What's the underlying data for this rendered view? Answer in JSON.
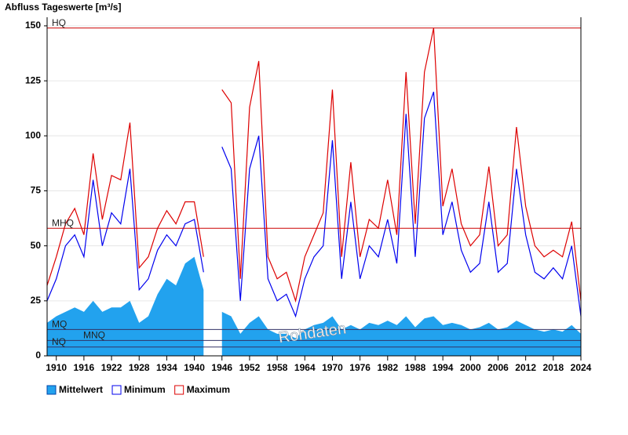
{
  "chart_data": {
    "type": "line",
    "title": "Abfluss Tageswerte [m³/s]",
    "x": [
      1908,
      1910,
      1912,
      1914,
      1916,
      1918,
      1920,
      1922,
      1924,
      1926,
      1928,
      1930,
      1932,
      1934,
      1936,
      1938,
      1940,
      1942,
      1944,
      1946,
      1948,
      1950,
      1952,
      1954,
      1956,
      1958,
      1960,
      1962,
      1964,
      1966,
      1968,
      1970,
      1972,
      1974,
      1976,
      1978,
      1980,
      1982,
      1984,
      1986,
      1988,
      1990,
      1992,
      1994,
      1996,
      1998,
      2000,
      2002,
      2004,
      2006,
      2008,
      2010,
      2012,
      2014,
      2016,
      2018,
      2020,
      2022,
      2024
    ],
    "series": [
      {
        "name": "Mittelwert",
        "color": "#22a2ee",
        "style": "area",
        "values": [
          15,
          18,
          20,
          22,
          20,
          25,
          20,
          22,
          22,
          25,
          15,
          18,
          28,
          35,
          32,
          42,
          45,
          30,
          null,
          20,
          18,
          10,
          15,
          18,
          12,
          10,
          10,
          8,
          12,
          14,
          15,
          18,
          12,
          14,
          12,
          15,
          14,
          16,
          14,
          18,
          13,
          17,
          18,
          14,
          15,
          14,
          12,
          13,
          15,
          12,
          13,
          16,
          14,
          12,
          11,
          12,
          11,
          14,
          10
        ]
      },
      {
        "name": "Minimum",
        "color": "#0000ee",
        "style": "line",
        "values": [
          25,
          35,
          50,
          55,
          45,
          80,
          50,
          65,
          60,
          85,
          30,
          35,
          48,
          55,
          50,
          60,
          62,
          38,
          null,
          95,
          85,
          25,
          85,
          100,
          35,
          25,
          28,
          18,
          35,
          45,
          50,
          98,
          35,
          70,
          35,
          50,
          45,
          62,
          42,
          110,
          45,
          108,
          120,
          55,
          70,
          48,
          38,
          42,
          70,
          38,
          42,
          85,
          55,
          38,
          35,
          40,
          35,
          50,
          18
        ]
      },
      {
        "name": "Maximum",
        "color": "#dd0000",
        "style": "line",
        "values": [
          32,
          45,
          60,
          67,
          55,
          92,
          62,
          82,
          80,
          106,
          40,
          45,
          58,
          66,
          60,
          70,
          70,
          45,
          null,
          121,
          115,
          35,
          113,
          134,
          45,
          35,
          38,
          25,
          45,
          55,
          65,
          121,
          45,
          88,
          45,
          62,
          58,
          80,
          55,
          129,
          60,
          129,
          149,
          68,
          85,
          60,
          50,
          55,
          86,
          50,
          55,
          104,
          68,
          50,
          45,
          48,
          45,
          61,
          25
        ]
      }
    ],
    "reference_lines": [
      {
        "label": "HQ",
        "value": 149,
        "color": "#cc0000"
      },
      {
        "label": "MHQ",
        "value": 58,
        "color": "#cc0000"
      },
      {
        "label": "MQ",
        "value": 12,
        "color": "#333366"
      },
      {
        "label": "MNQ",
        "value": 7,
        "color": "#333366"
      },
      {
        "label": "NQ",
        "value": 4,
        "color": "#333366"
      }
    ],
    "watermark": "Rohdaten",
    "xlim": [
      1908,
      2024
    ],
    "xticks": [
      1910,
      1916,
      1922,
      1928,
      1934,
      1940,
      1946,
      1952,
      1958,
      1964,
      1970,
      1976,
      1982,
      1988,
      1994,
      2000,
      2006,
      2012,
      2018,
      2024
    ],
    "ylim": [
      0,
      153.9
    ],
    "yticks": [
      0,
      25,
      50,
      75,
      100,
      125,
      150
    ],
    "grid": true
  }
}
